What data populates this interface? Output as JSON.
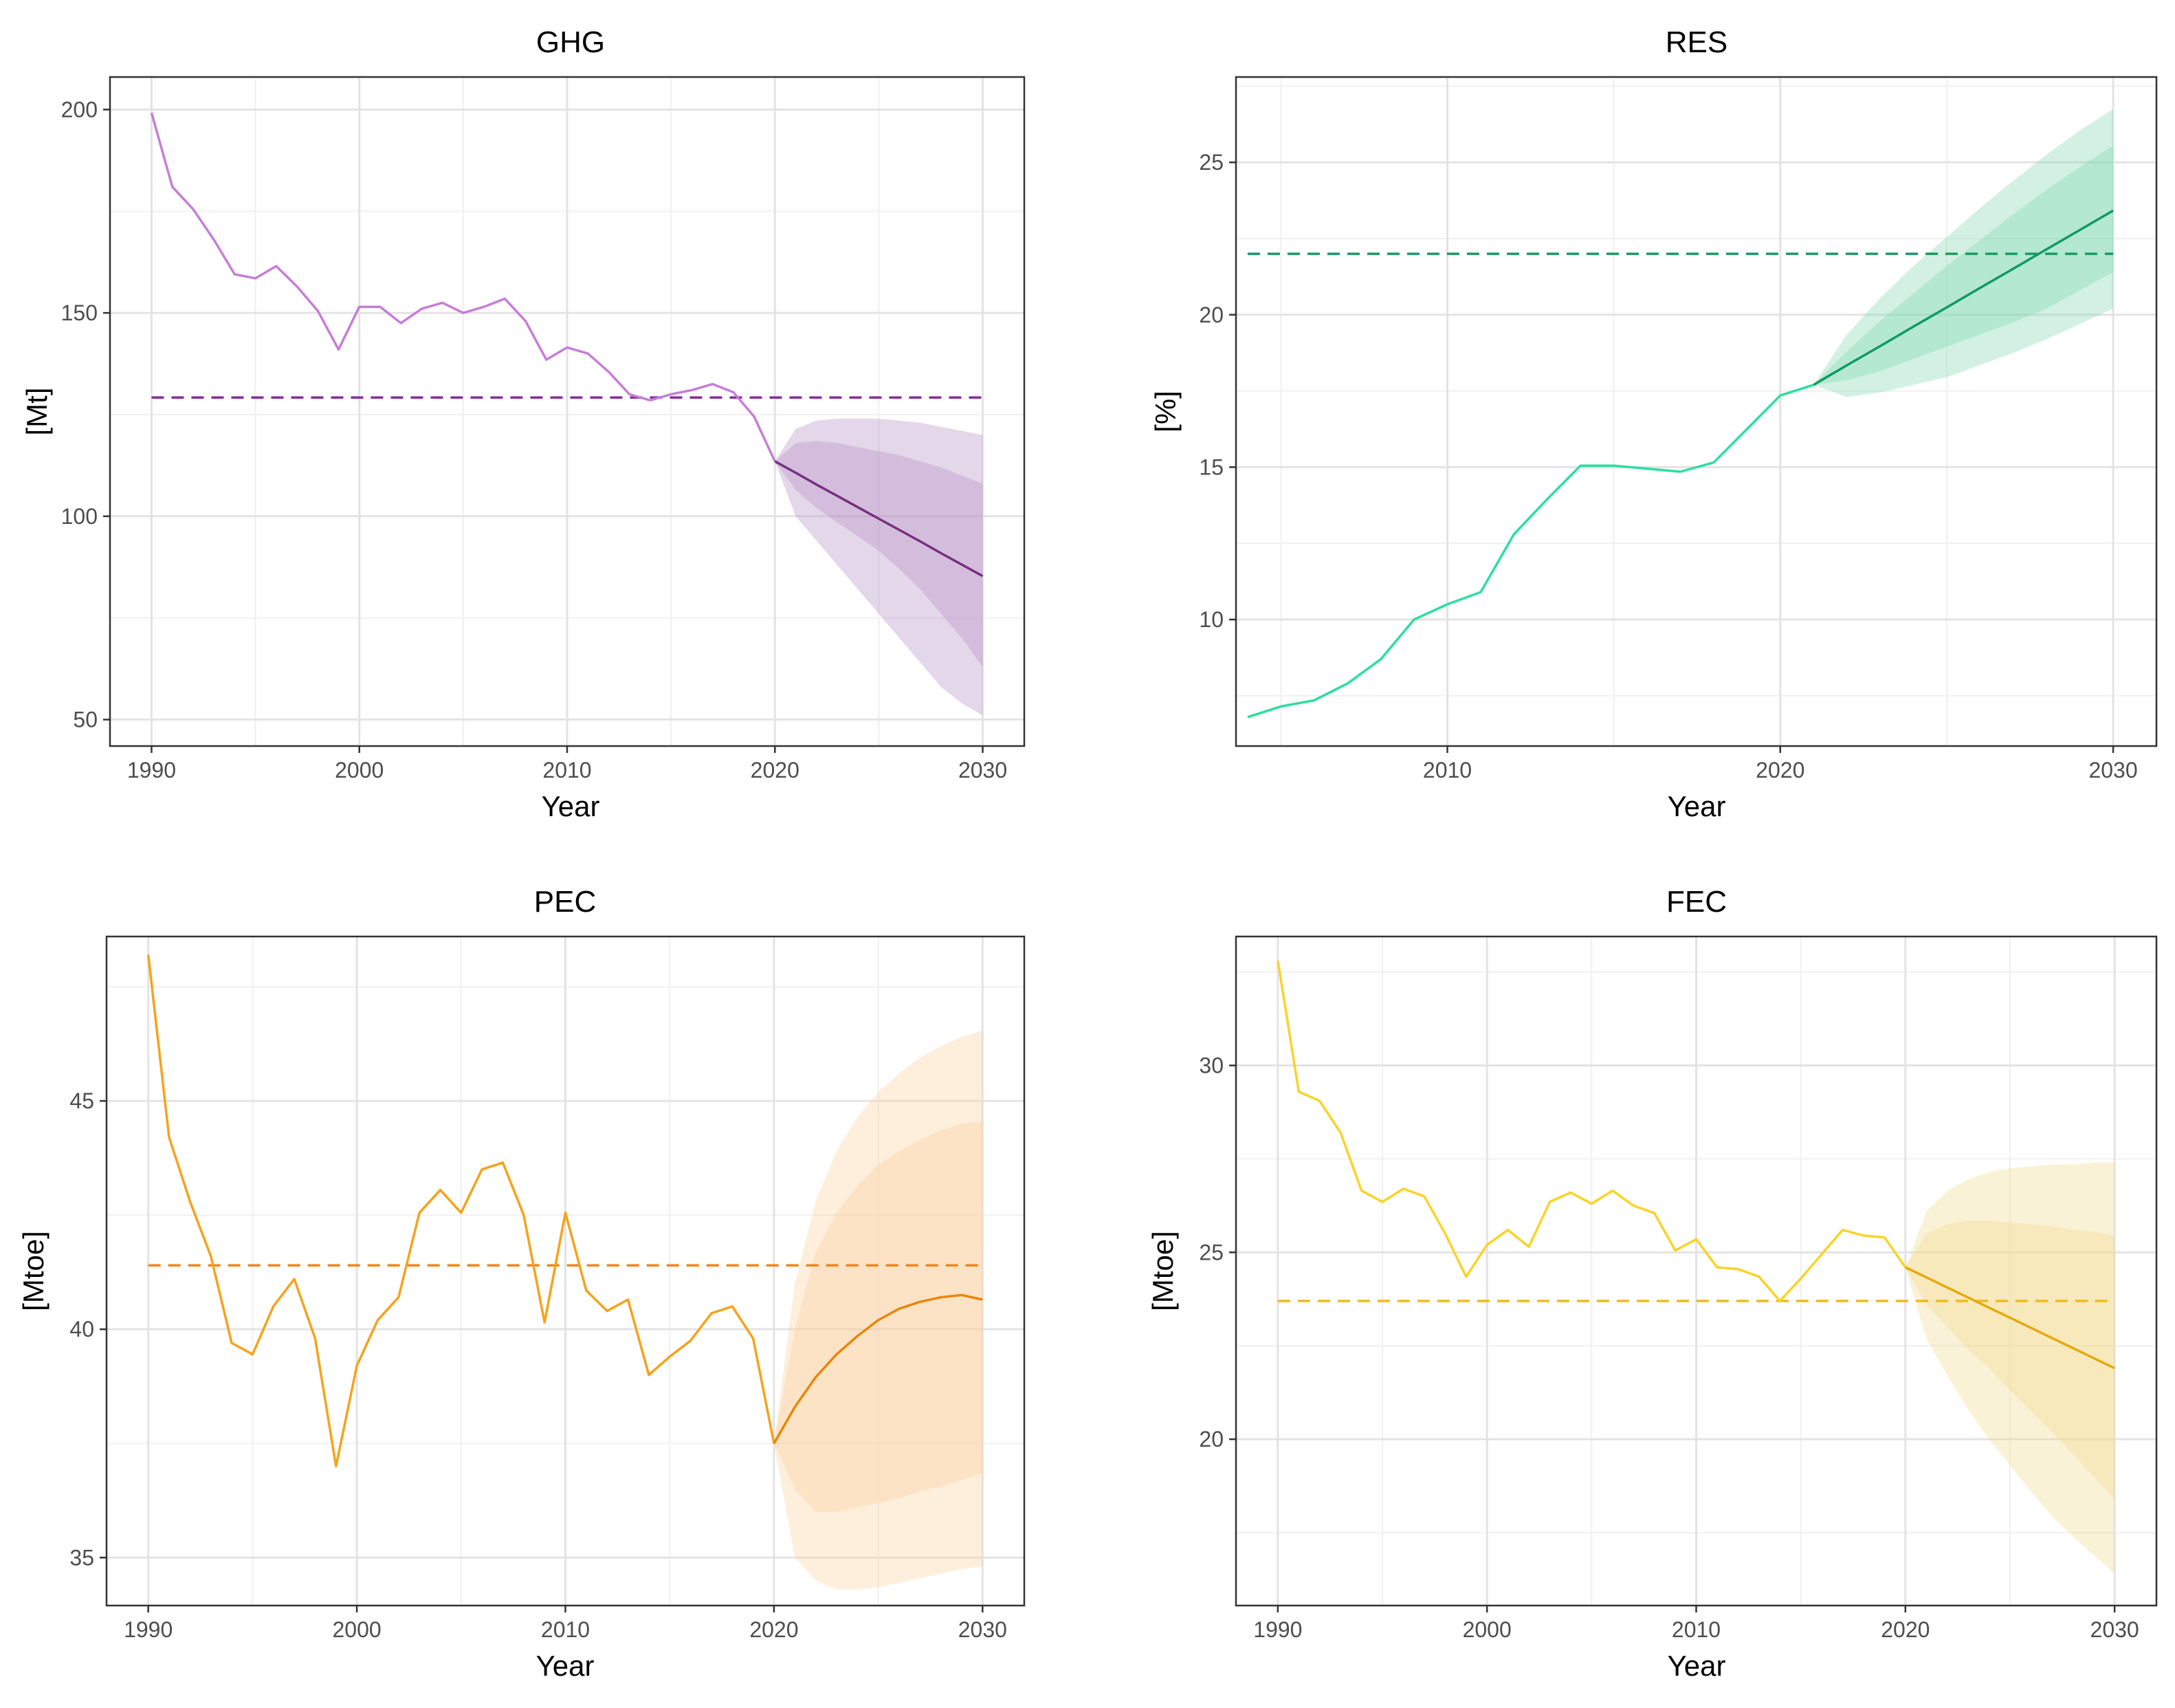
{
  "chart_data": [
    {
      "type": "line",
      "title": "GHG",
      "xlabel": "Year",
      "ylabel": "[Mt]",
      "xlim": [
        1988,
        2032
      ],
      "ylim": [
        43.5,
        208
      ],
      "xticks": [
        1990,
        2000,
        2010,
        2020,
        2030
      ],
      "yticks": [
        50,
        100,
        150,
        200
      ],
      "colors": {
        "historical": "#c77dd8",
        "forecast": "#76307f",
        "target": "#8a2a9c",
        "band": "#b48cc3"
      },
      "target": {
        "value": 129.2,
        "x": [
          1990,
          2030
        ]
      },
      "historical": {
        "x": [
          1990,
          1991,
          1992,
          1993,
          1994,
          1995,
          1996,
          1997,
          1998,
          1999,
          2000,
          2001,
          2002,
          2003,
          2004,
          2005,
          2006,
          2007,
          2008,
          2009,
          2010,
          2011,
          2012,
          2013,
          2014,
          2015,
          2016,
          2017,
          2018,
          2019,
          2020
        ],
        "y": [
          199.2,
          181.0,
          175.5,
          168,
          159.5,
          158.5,
          161.5,
          156.5,
          150.5,
          141.0,
          151.5,
          151.5,
          147.5,
          151,
          152.5,
          150,
          151.5,
          153.5,
          148,
          138.5,
          141.5,
          140,
          135.5,
          130,
          128.5,
          130,
          131,
          132.5,
          130.5,
          124.5,
          113.5
        ]
      },
      "forecast": {
        "x": [
          2020,
          2021,
          2022,
          2023,
          2024,
          2025,
          2026,
          2027,
          2028,
          2029,
          2030
        ],
        "y": [
          113.5,
          110.7,
          107.8,
          105,
          102.2,
          99.4,
          96.6,
          93.8,
          90.9,
          88.1,
          85.3
        ],
        "lower80": [
          113.5,
          106.5,
          102,
          98.5,
          95,
          91.5,
          87,
          82,
          76,
          70,
          63
        ],
        "upper80": [
          113.5,
          118,
          118.5,
          118,
          117,
          116,
          115,
          113.5,
          112,
          110,
          108
        ],
        "lower95": [
          113.5,
          100,
          94,
          88,
          82,
          76,
          70,
          64,
          58,
          54,
          51
        ],
        "upper95": [
          113.5,
          121.5,
          123.5,
          124,
          124,
          124,
          123.5,
          123,
          122,
          121,
          120
        ]
      }
    },
    {
      "type": "line",
      "title": "RES",
      "xlabel": "Year",
      "ylabel": "[%]",
      "xlim": [
        2003.65,
        2031.3
      ],
      "ylim": [
        5.85,
        27.8
      ],
      "xticks": [
        2010,
        2020,
        2030
      ],
      "yticks": [
        10,
        15,
        20,
        25
      ],
      "colors": {
        "historical": "#2bdf9f",
        "forecast": "#0f9a63",
        "target": "#199a63",
        "band": "#7fd7ae"
      },
      "target": {
        "value": 22.0,
        "x": [
          2004,
          2030
        ]
      },
      "historical": {
        "x": [
          2004,
          2005,
          2006,
          2007,
          2008,
          2009,
          2010,
          2011,
          2012,
          2013,
          2014,
          2015,
          2016,
          2017,
          2018,
          2019,
          2020,
          2021
        ],
        "y": [
          6.8,
          7.15,
          7.35,
          7.9,
          8.7,
          10.0,
          10.5,
          10.9,
          12.8,
          13.95,
          15.05,
          15.05,
          14.95,
          14.85,
          15.15,
          16.25,
          17.35,
          17.7
        ]
      },
      "forecast": {
        "x": [
          2021,
          2022,
          2023,
          2024,
          2025,
          2026,
          2027,
          2028,
          2029,
          2030
        ],
        "y": [
          17.7,
          18.34,
          18.97,
          19.61,
          20.24,
          20.88,
          21.51,
          22.15,
          22.78,
          23.42
        ],
        "lower80": [
          17.7,
          17.85,
          18.15,
          18.55,
          18.95,
          19.35,
          19.75,
          20.2,
          20.8,
          21.4
        ],
        "upper80": [
          17.7,
          18.8,
          19.8,
          20.7,
          21.6,
          22.45,
          23.3,
          24.1,
          24.85,
          25.55
        ],
        "lower95": [
          17.7,
          17.3,
          17.45,
          17.7,
          17.95,
          18.35,
          18.75,
          19.2,
          19.7,
          20.2
        ],
        "upper95": [
          17.7,
          19.35,
          20.55,
          21.6,
          22.55,
          23.5,
          24.4,
          25.25,
          26.05,
          26.75
        ]
      }
    },
    {
      "type": "line",
      "title": "PEC",
      "xlabel": "Year",
      "ylabel": "[Mtoe]",
      "xlim": [
        1988,
        2032
      ],
      "ylim": [
        33.95,
        48.6
      ],
      "xticks": [
        1990,
        2000,
        2010,
        2020,
        2030
      ],
      "yticks": [
        35,
        40,
        45
      ],
      "colors": {
        "historical": "#f7a21a",
        "forecast": "#e8860a",
        "target": "#f0861a",
        "band": "#fbcf9c"
      },
      "target": {
        "value": 41.4,
        "x": [
          1990,
          2030
        ]
      },
      "historical": {
        "x": [
          1990,
          1991,
          1992,
          1993,
          1994,
          1995,
          1996,
          1997,
          1998,
          1999,
          2000,
          2001,
          2002,
          2003,
          2004,
          2005,
          2006,
          2007,
          2008,
          2009,
          2010,
          2011,
          2012,
          2013,
          2014,
          2015,
          2016,
          2017,
          2018,
          2019,
          2020
        ],
        "y": [
          48.2,
          44.2,
          42.8,
          41.6,
          39.7,
          39.45,
          40.5,
          41.1,
          39.8,
          37.0,
          39.2,
          40.2,
          40.7,
          42.55,
          43.05,
          42.55,
          43.5,
          43.65,
          42.5,
          40.15,
          42.55,
          40.85,
          40.4,
          40.65,
          39.0,
          39.4,
          39.75,
          40.35,
          40.5,
          39.8,
          37.5
        ]
      },
      "forecast": {
        "x": [
          2020,
          2021,
          2022,
          2023,
          2024,
          2025,
          2026,
          2027,
          2028,
          2029,
          2030
        ],
        "y": [
          37.5,
          38.3,
          38.95,
          39.45,
          39.85,
          40.2,
          40.45,
          40.6,
          40.7,
          40.75,
          40.65
        ],
        "lower80": [
          37.5,
          36.5,
          36.0,
          36.0,
          36.1,
          36.2,
          36.3,
          36.45,
          36.55,
          36.7,
          36.85
        ],
        "upper80": [
          37.5,
          40.0,
          41.7,
          42.55,
          43.15,
          43.6,
          43.9,
          44.15,
          44.35,
          44.5,
          44.55
        ],
        "lower95": [
          37.5,
          35.0,
          34.5,
          34.3,
          34.3,
          34.35,
          34.45,
          34.55,
          34.65,
          34.75,
          34.8
        ],
        "upper95": [
          37.5,
          41.0,
          42.8,
          43.9,
          44.65,
          45.2,
          45.6,
          45.95,
          46.2,
          46.4,
          46.55
        ]
      }
    },
    {
      "type": "line",
      "title": "FEC",
      "xlabel": "Year",
      "ylabel": "[Mtoe]",
      "xlim": [
        1988,
        2032
      ],
      "ylim": [
        15.55,
        33.45
      ],
      "xticks": [
        1990,
        2000,
        2010,
        2020,
        2030
      ],
      "yticks": [
        20,
        25,
        30
      ],
      "colors": {
        "historical": "#fbd327",
        "forecast": "#e5a90c",
        "target": "#f0ba1c",
        "band": "#f2d98a"
      },
      "target": {
        "value": 23.7,
        "x": [
          1990,
          2030
        ]
      },
      "historical": {
        "x": [
          1990,
          1991,
          1992,
          1993,
          1994,
          1995,
          1996,
          1997,
          1998,
          1999,
          2000,
          2001,
          2002,
          2003,
          2004,
          2005,
          2006,
          2007,
          2008,
          2009,
          2010,
          2011,
          2012,
          2013,
          2014,
          2015,
          2016,
          2017,
          2018,
          2019,
          2020
        ],
        "y": [
          32.8,
          29.3,
          29.05,
          28.2,
          26.65,
          26.35,
          26.7,
          26.5,
          25.5,
          24.35,
          25.2,
          25.6,
          25.15,
          26.35,
          26.6,
          26.3,
          26.65,
          26.25,
          26.05,
          25.05,
          25.35,
          24.6,
          24.55,
          24.35,
          23.7,
          24.3,
          24.95,
          25.6,
          25.45,
          25.4,
          24.6
        ]
      },
      "forecast": {
        "x": [
          2020,
          2021,
          2022,
          2023,
          2024,
          2025,
          2026,
          2027,
          2028,
          2029,
          2030
        ],
        "y": [
          24.6,
          24.33,
          24.06,
          23.79,
          23.52,
          23.25,
          22.98,
          22.71,
          22.44,
          22.17,
          21.9
        ],
        "lower80": [
          24.6,
          23.6,
          23.0,
          22.4,
          21.9,
          21.3,
          20.75,
          20.2,
          19.6,
          19.0,
          18.4
        ],
        "upper80": [
          24.6,
          25.5,
          25.75,
          25.85,
          25.85,
          25.8,
          25.75,
          25.7,
          25.6,
          25.55,
          25.45
        ],
        "lower95": [
          24.6,
          22.7,
          21.7,
          20.8,
          20.0,
          19.3,
          18.6,
          17.95,
          17.4,
          16.9,
          16.4
        ],
        "upper95": [
          24.6,
          26.1,
          26.65,
          26.95,
          27.15,
          27.25,
          27.3,
          27.35,
          27.35,
          27.4,
          27.4
        ]
      }
    }
  ]
}
